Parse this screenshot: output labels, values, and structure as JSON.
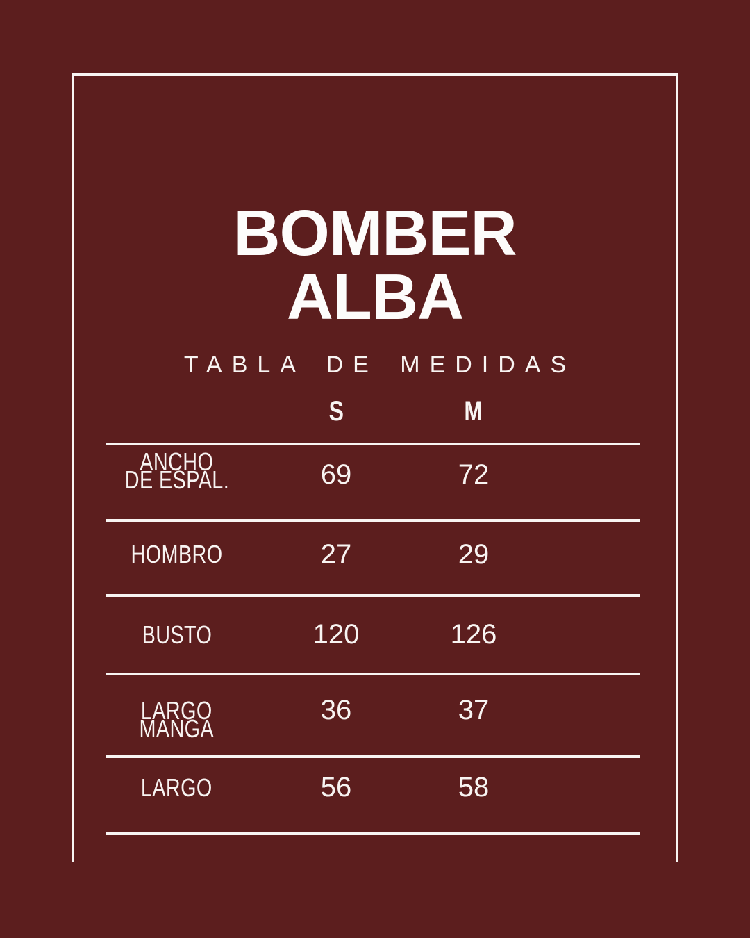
{
  "poster": {
    "background_color": "#5C1E1E",
    "text_color": "#F8F4F2",
    "title_color": "#FDFCFB",
    "line_color": "#F8F4F2",
    "title_line1": "BOMBER",
    "title_line2": "ALBA",
    "subtitle": "TABLA DE MEDIDAS"
  },
  "table": {
    "size_columns": [
      "S",
      "M"
    ],
    "rows": [
      {
        "label_line1": "ANCHO",
        "label_line2": "DE ESPAL.",
        "s": "69",
        "m": "72"
      },
      {
        "label_line1": "HOMBRO",
        "label_line2": "",
        "s": "27",
        "m": "29"
      },
      {
        "label_line1": "BUSTO",
        "label_line2": "",
        "s": "120",
        "m": "126"
      },
      {
        "label_line1": "LARGO",
        "label_line2": "MANGA",
        "s": "36",
        "m": "37"
      },
      {
        "label_line1": "LARGO",
        "label_line2": "",
        "s": "56",
        "m": "58"
      }
    ]
  },
  "chart_data": {
    "type": "table",
    "title": "BOMBER ALBA",
    "subtitle": "TABLA DE MEDIDAS",
    "columns": [
      "",
      "S",
      "M"
    ],
    "rows": [
      [
        "ANCHO DE ESPAL.",
        69,
        72
      ],
      [
        "HOMBRO",
        27,
        29
      ],
      [
        "BUSTO",
        120,
        126
      ],
      [
        "LARGO MANGA",
        36,
        37
      ],
      [
        "LARGO",
        56,
        58
      ]
    ]
  }
}
